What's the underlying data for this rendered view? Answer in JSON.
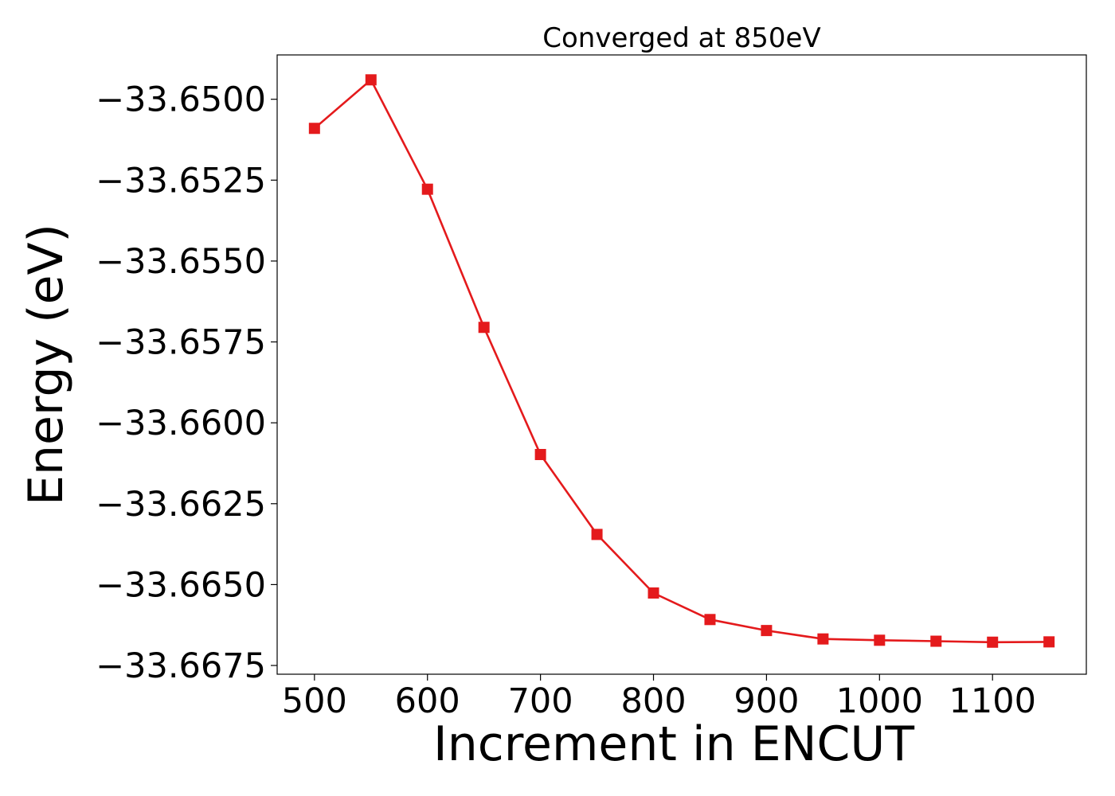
{
  "chart_data": {
    "type": "line",
    "title": "Converged at 850eV",
    "xlabel": "Increment in ENCUT",
    "ylabel": "Energy (eV)",
    "x": [
      500,
      550,
      600,
      650,
      700,
      750,
      800,
      850,
      900,
      950,
      1000,
      1050,
      1100,
      1150
    ],
    "series": [
      {
        "values": [
          -33.6509,
          -33.6494,
          -33.65278,
          -33.65705,
          -33.66098,
          -33.66345,
          -33.66526,
          -33.66608,
          -33.66642,
          -33.66668,
          -33.66672,
          -33.66675,
          -33.66678,
          -33.66677
        ]
      }
    ],
    "xlim": [
      467,
      1183
    ],
    "ylim": [
      -33.66777,
      -33.64863
    ],
    "xticks": [
      500,
      600,
      700,
      800,
      900,
      1000,
      1100
    ],
    "xtick_labels": [
      "500",
      "600",
      "700",
      "800",
      "900",
      "1000",
      "1100"
    ],
    "yticks": [
      -33.65,
      -33.6525,
      -33.655,
      -33.6575,
      -33.66,
      -33.6625,
      -33.665,
      -33.6675
    ],
    "ytick_labels": [
      "−33.6500",
      "−33.6525",
      "−33.6550",
      "−33.6575",
      "−33.6600",
      "−33.6625",
      "−33.6650",
      "−33.6675"
    ],
    "line_color": "#e41a1c",
    "marker": "square",
    "grid": false,
    "legend": false
  }
}
